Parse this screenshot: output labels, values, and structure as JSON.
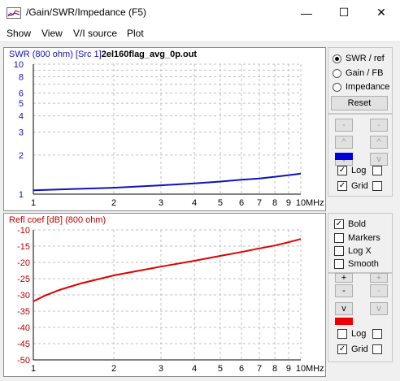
{
  "window": {
    "title": "/Gain/SWR/Impedance (F5)",
    "minimize": "—",
    "maximize": "☐",
    "close": "✕"
  },
  "menu": [
    "Show",
    "View",
    "V/I source",
    "Plot"
  ],
  "top_plot": {
    "title_prefix": "SWR (800 ohm) [Src 1]",
    "title_file": "2el160flag_avg_0p.out",
    "line_color": "#1010c0",
    "y_ticks": [
      "10",
      "8",
      "6",
      "5",
      "4",
      "3",
      "2",
      "1"
    ],
    "x_ticks": [
      "1",
      "2",
      "3",
      "4",
      "5",
      "6",
      "7",
      "8",
      "9",
      "10"
    ],
    "x_unit": "MHz"
  },
  "bottom_plot": {
    "title": "Refl coef [dB] (800 ohm)",
    "line_color": "#e00000",
    "y_ticks": [
      "-10",
      "-15",
      "-20",
      "-25",
      "-30",
      "-35",
      "-40",
      "-45",
      "-50"
    ],
    "x_ticks": [
      "1",
      "2",
      "3",
      "4",
      "5",
      "6",
      "7",
      "8",
      "9",
      "10"
    ],
    "x_unit": "MHz"
  },
  "chart_data": [
    {
      "type": "line",
      "title": "SWR (800 ohm) [Src 1] 2el160flag_avg_0p.out",
      "xlabel": "MHz",
      "ylabel": "",
      "x_scale": "log",
      "y_scale": "log",
      "xlim": [
        1,
        10
      ],
      "ylim": [
        1,
        10
      ],
      "grid": true,
      "series": [
        {
          "x": [
            1.0,
            1.5,
            2,
            3,
            4,
            5,
            6,
            7,
            8,
            9,
            10
          ],
          "y": [
            1.07,
            1.1,
            1.12,
            1.17,
            1.21,
            1.25,
            1.29,
            1.32,
            1.36,
            1.4,
            1.44
          ]
        }
      ]
    },
    {
      "type": "line",
      "title": "Refl coef [dB] (800 ohm)",
      "xlabel": "MHz",
      "ylabel": "",
      "x_scale": "log",
      "xlim": [
        1,
        10
      ],
      "ylim": [
        -50,
        -10
      ],
      "grid": true,
      "series": [
        {
          "x": [
            1.0,
            1.1,
            1.25,
            1.5,
            2,
            2.5,
            3,
            4,
            5,
            6,
            7,
            8,
            9,
            10
          ],
          "y": [
            -32,
            -30.3,
            -28.5,
            -26.5,
            -24,
            -22.5,
            -21.3,
            -19.5,
            -18,
            -16.8,
            -15.7,
            -14.8,
            -13.8,
            -12.8
          ]
        }
      ]
    }
  ],
  "sidebar_top": {
    "radios": [
      {
        "label": "SWR / ref",
        "selected": true
      },
      {
        "label": "Gain / FB",
        "selected": false
      },
      {
        "label": "Impedance",
        "selected": false
      }
    ],
    "reset_label": "Reset",
    "arrows": [
      "-",
      "-",
      "^",
      "^",
      "v",
      "v"
    ],
    "color_swatch": "#0000dd",
    "log_label": "Log",
    "log_checked": true,
    "grid_label": "Grid",
    "grid_checked": true
  },
  "sidebar_bottom": {
    "checks": [
      {
        "label": "Bold",
        "checked": true
      },
      {
        "label": "Markers",
        "checked": false
      },
      {
        "label": "Log X",
        "checked": false
      },
      {
        "label": "Smooth",
        "checked": false
      }
    ],
    "arrows": [
      "+",
      "+",
      "-",
      "-",
      "v",
      "v"
    ],
    "color_swatch": "#ee0000",
    "log_label": "Log",
    "log_checked": false,
    "grid_label": "Grid",
    "grid_checked": true
  }
}
